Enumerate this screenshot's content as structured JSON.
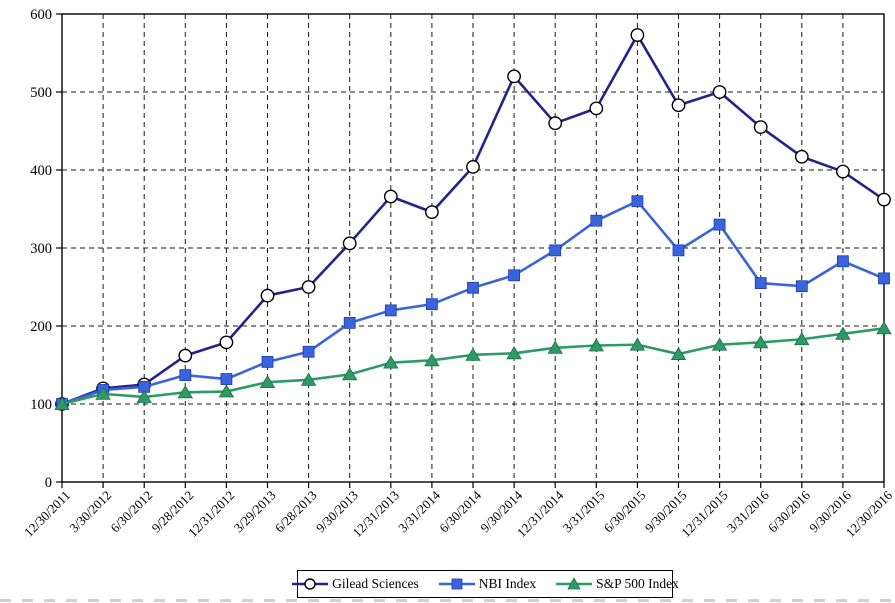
{
  "chart_data": {
    "type": "line",
    "title": "",
    "xlabel": "",
    "ylabel": "",
    "ylim": [
      0,
      600
    ],
    "ytick_step": 100,
    "yticks": [
      "0",
      "100",
      "200",
      "300",
      "400",
      "500",
      "600"
    ],
    "grid": "dashed-horizontal-and-vertical",
    "legend_position": "bottom-center",
    "categories": [
      "12/30/2011",
      "3/30/2012",
      "6/30/2012",
      "9/28/2012",
      "12/31/2012",
      "3/29/2013",
      "6/28/2013",
      "9/30/2013",
      "12/31/2013",
      "3/31/2014",
      "6/30/2014",
      "9/30/2014",
      "12/31/2014",
      "3/31/2015",
      "6/30/2015",
      "9/30/2015",
      "12/31/2015",
      "3/31/2016",
      "6/30/2016",
      "9/30/2016",
      "12/30/2016"
    ],
    "series": [
      {
        "name": "Gilead Sciences",
        "marker": "circle",
        "line_color": "#23238E",
        "marker_fill": "#FFFFFF",
        "marker_stroke": "#000000",
        "values": [
          100,
          120,
          125,
          162,
          179,
          239,
          250,
          306,
          366,
          346,
          404,
          520,
          460,
          479,
          573,
          483,
          500,
          455,
          417,
          398,
          362
        ]
      },
      {
        "name": "NBI Index",
        "marker": "square",
        "line_color": "#3A64DC",
        "marker_fill": "#3A64DC",
        "marker_stroke": "#1F3CB0",
        "values": [
          100,
          118,
          122,
          137,
          132,
          154,
          167,
          204,
          220,
          228,
          249,
          265,
          297,
          335,
          360,
          297,
          330,
          255,
          251,
          283,
          261
        ]
      },
      {
        "name": "S&P 500 Index",
        "marker": "triangle",
        "line_color": "#2E9A66",
        "marker_fill": "#2E9A66",
        "marker_stroke": "#17734A",
        "values": [
          100,
          113,
          109,
          115,
          116,
          128,
          131,
          138,
          153,
          156,
          163,
          165,
          172,
          175,
          176,
          164,
          176,
          179,
          183,
          190,
          197
        ]
      }
    ]
  }
}
